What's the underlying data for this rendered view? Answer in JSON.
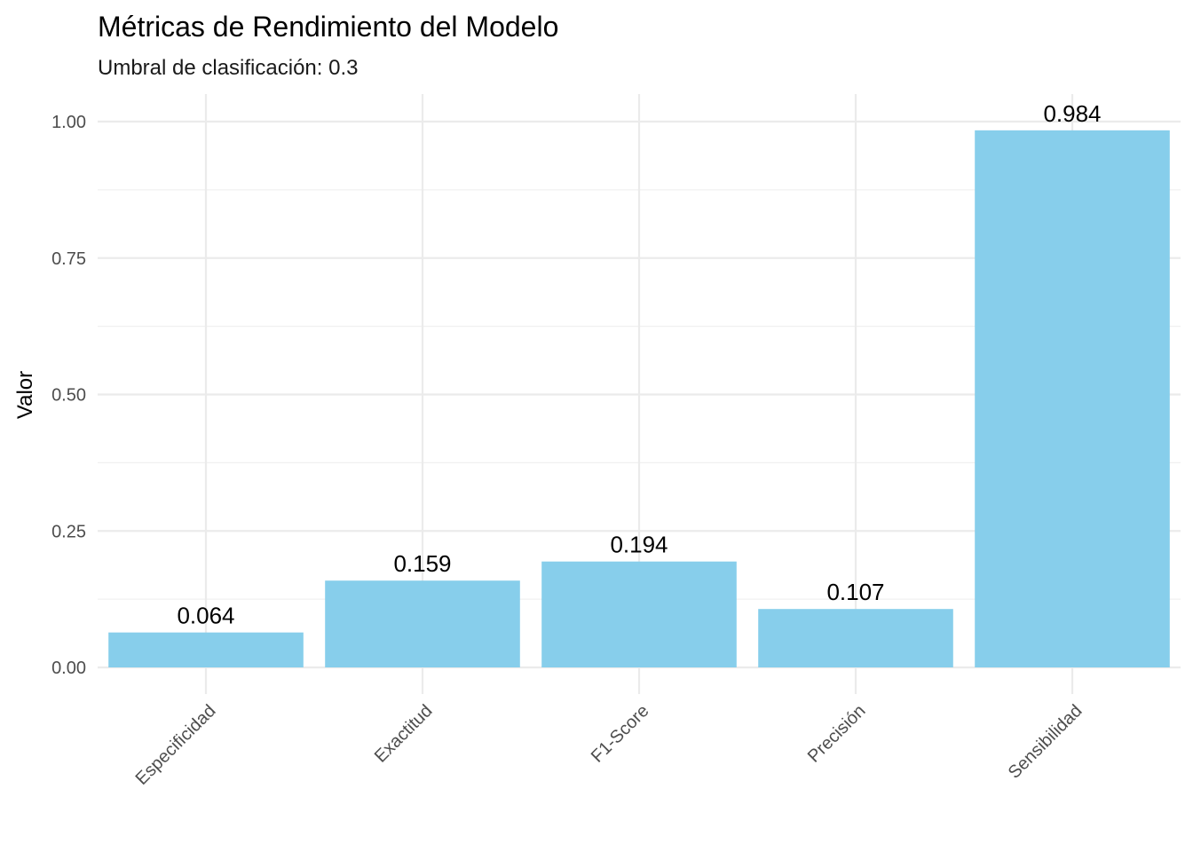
{
  "chart_data": {
    "type": "bar",
    "title": "Métricas de Rendimiento del Modelo",
    "subtitle": "Umbral de clasificación: 0.3",
    "xlabel": "",
    "ylabel": "Valor",
    "categories": [
      "Especificidad",
      "Exactitud",
      "F1-Score",
      "Precisión",
      "Sensibilidad"
    ],
    "values": [
      0.064,
      0.159,
      0.194,
      0.107,
      0.984
    ],
    "data_labels": [
      "0.064",
      "0.159",
      "0.194",
      "0.107",
      "0.984"
    ],
    "yticks": [
      "0.00",
      "0.25",
      "0.50",
      "0.75",
      "1.00"
    ],
    "ylim": [
      0,
      1.05
    ],
    "bar_color": "#87CEEB",
    "grid": true,
    "legend": "none"
  }
}
